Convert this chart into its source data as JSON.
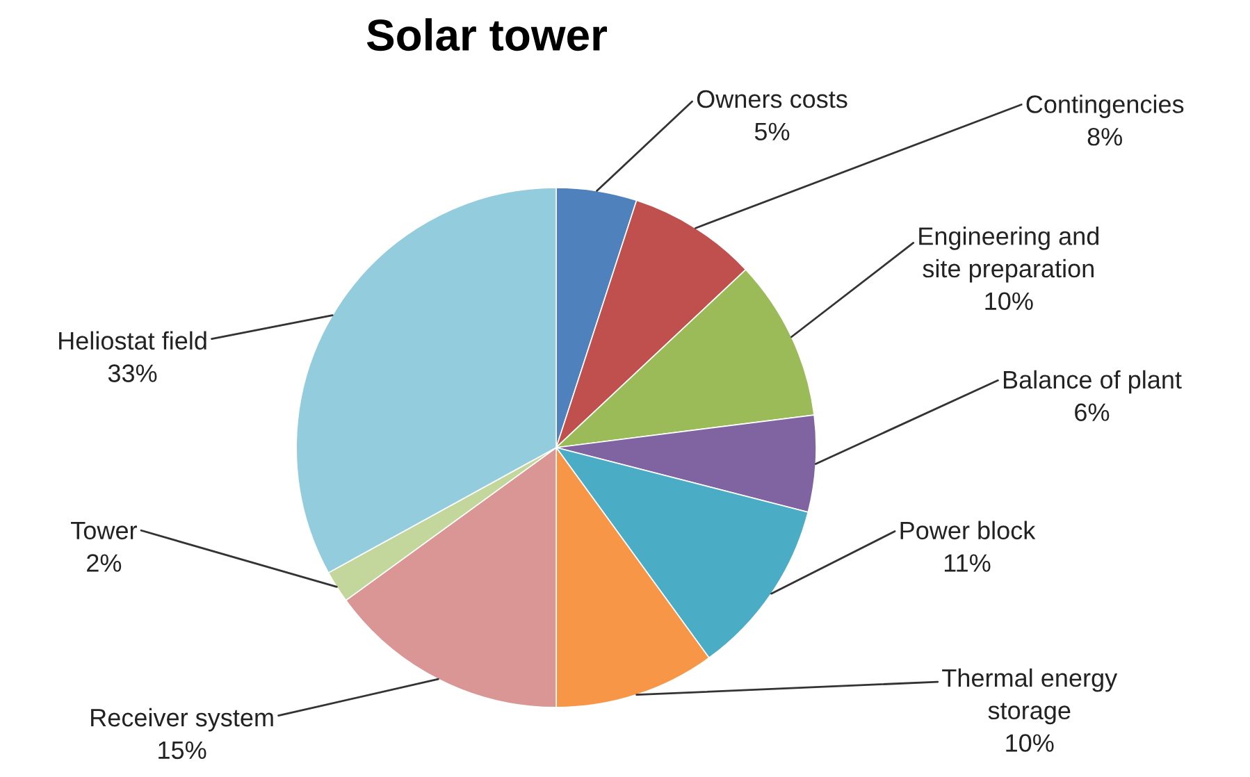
{
  "chart_data": {
    "type": "pie",
    "title": "Solar tower",
    "categories": [
      "Owners costs",
      "Contingencies",
      "Engineering and\nsite preparation",
      "Balance of plant",
      "Power block",
      "Thermal energy\nstorage",
      "Receiver system",
      "Tower",
      "Heliostat field"
    ],
    "values": [
      5,
      8,
      10,
      6,
      11,
      10,
      15,
      2,
      33
    ],
    "colors": [
      "#4f81bd",
      "#c0504d",
      "#9bbb59",
      "#8064a2",
      "#4bacc6",
      "#f79646",
      "#d99694",
      "#c3d69b",
      "#93cddd"
    ],
    "value_labels": [
      "5%",
      "8%",
      "10%",
      "6%",
      "11%",
      "10%",
      "15%",
      "2%",
      "33%"
    ],
    "legend": false
  }
}
